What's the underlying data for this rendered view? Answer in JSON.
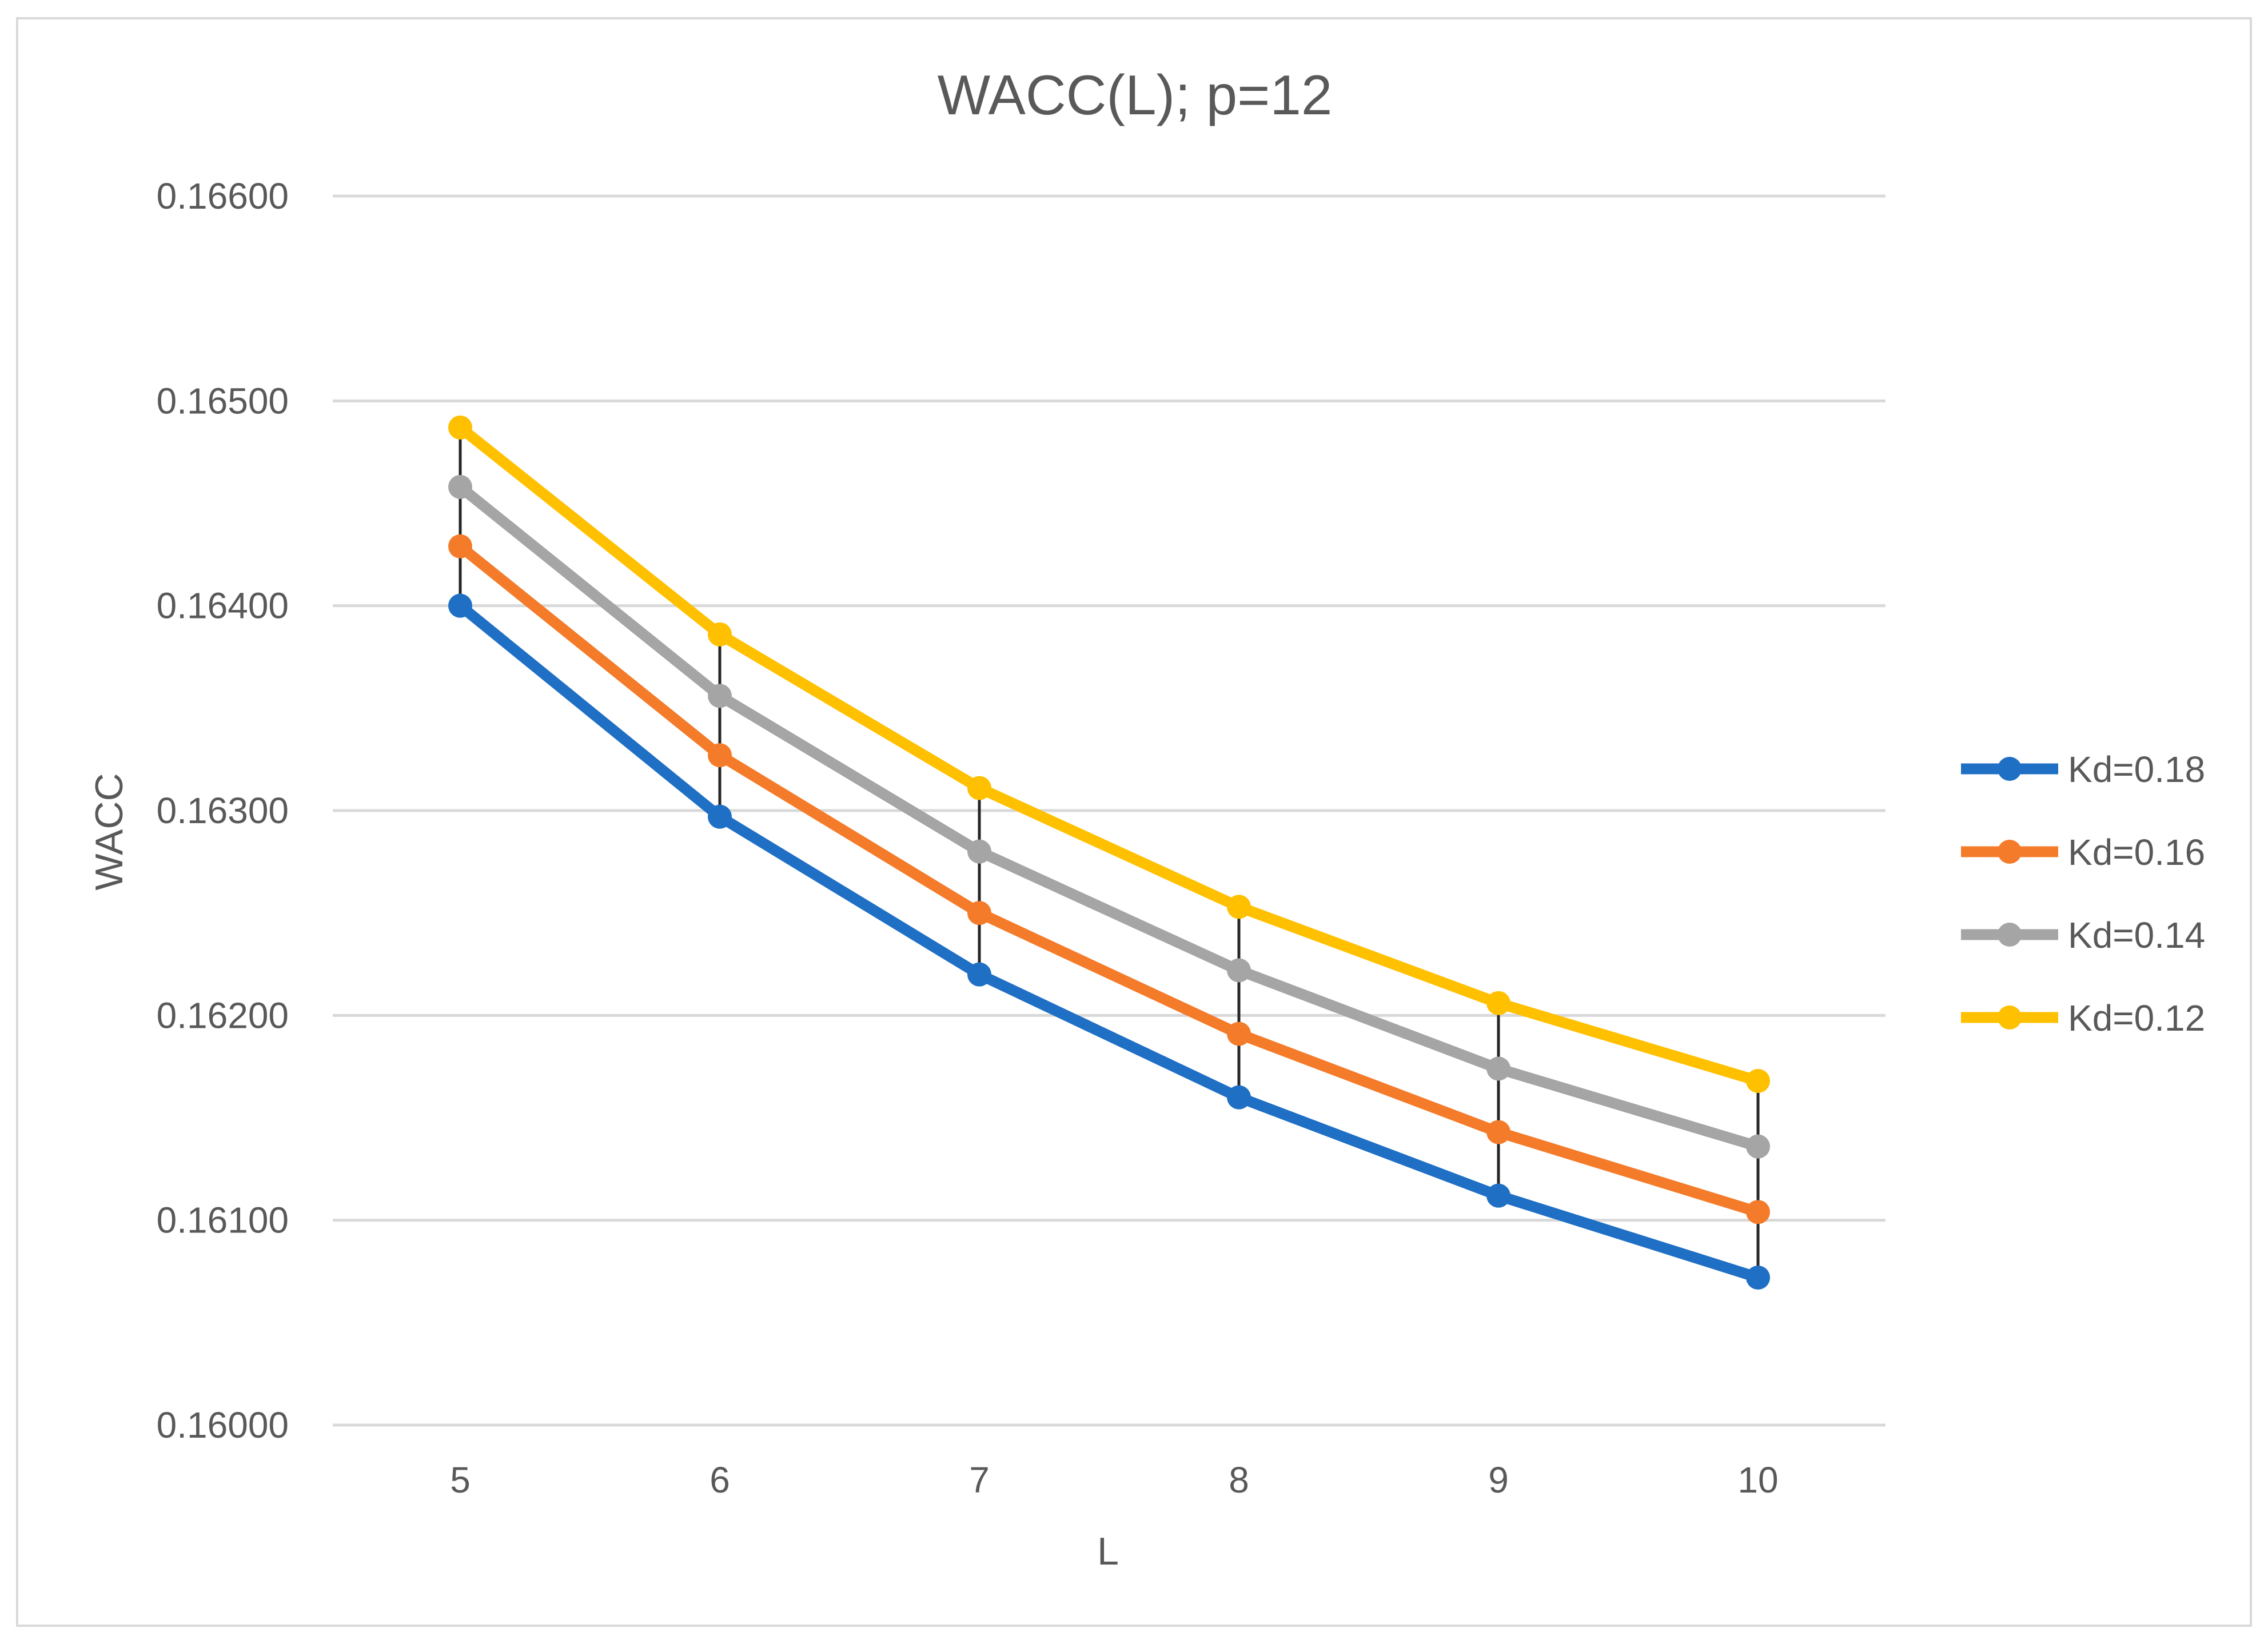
{
  "chart_data": {
    "type": "line",
    "title": "WACC(L); p=12",
    "xlabel": "L",
    "ylabel": "WACC",
    "x": [
      5,
      6,
      7,
      8,
      9,
      10
    ],
    "ylim": [
      0.16,
      0.166
    ],
    "yticks": [
      "0.16000",
      "0.16100",
      "0.16200",
      "0.16300",
      "0.16400",
      "0.16500",
      "0.16600"
    ],
    "ytick_values": [
      0.16,
      0.161,
      0.162,
      0.163,
      0.164,
      0.165,
      0.166
    ],
    "xtick_labels": [
      "5",
      "6",
      "7",
      "8",
      "9",
      "10"
    ],
    "grid": true,
    "legend_position": "right",
    "drop_lines": true,
    "series": [
      {
        "name": "Kd=0.18",
        "color": "#1f6fc5",
        "values": [
          0.164,
          0.16297,
          0.1622,
          0.1616,
          0.16112,
          0.16072
        ]
      },
      {
        "name": "Kd=0.16",
        "color": "#f47b2a",
        "values": [
          0.16429,
          0.16327,
          0.1625,
          0.16191,
          0.16143,
          0.16104
        ]
      },
      {
        "name": "Kd=0.14",
        "color": "#a5a5a5",
        "values": [
          0.16458,
          0.16356,
          0.1628,
          0.16222,
          0.16174,
          0.16136
        ]
      },
      {
        "name": "Kd=0.12",
        "color": "#ffc000",
        "values": [
          0.16487,
          0.16386,
          0.16311,
          0.16253,
          0.16206,
          0.16168
        ]
      }
    ]
  }
}
